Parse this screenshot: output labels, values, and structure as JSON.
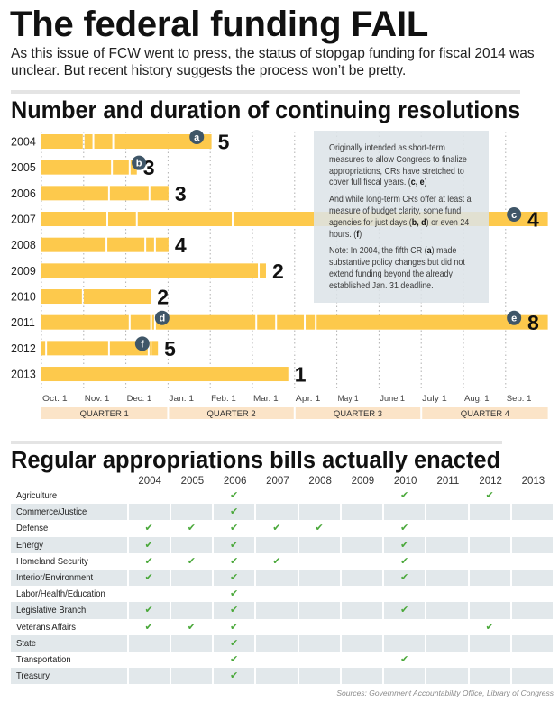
{
  "header": {
    "title": "The federal funding FAIL",
    "subtitle": "As this issue of FCW went to press, the status of stopgap funding for fiscal 2014 was unclear. But recent history suggests the process won’t be pretty."
  },
  "colors": {
    "bar": "#fdc94c",
    "badge": "#3f5668",
    "quarter_band": "#fbe4c8",
    "note_box": "#dde4e9",
    "check": "#4aa83a",
    "shaded_row": "#e2e8eb"
  },
  "chart_data": {
    "type": "bar",
    "orientation": "horizontal timeline (each bar = fiscal year, white breaks = end of each continuing resolution)",
    "title": "Number and duration of continuing resolutions",
    "xlabel": "",
    "ylabel": "",
    "x_unit": "months since Oct. 1 (start of fiscal year)",
    "x_range": [
      0,
      12
    ],
    "grid": "dotted vertical lines at each month",
    "categories": [
      "2004",
      "2005",
      "2006",
      "2007",
      "2008",
      "2009",
      "2010",
      "2011",
      "2012",
      "2013"
    ],
    "x_ticks": [
      "Oct. 1",
      "Nov. 1",
      "Dec. 1",
      "Jan. 1",
      "Feb. 1",
      "Mar. 1",
      "Apr. 1",
      "May 1",
      "June 1",
      "July 1",
      "Aug. 1",
      "Sep. 1"
    ],
    "quarters": [
      "QUARTER 1",
      "QUARTER 2",
      "QUARTER 3",
      "QUARTER 4"
    ],
    "series": [
      {
        "year": "2004",
        "count": "5",
        "cr_end_months": [
          1.0,
          1.23,
          1.7,
          4.03
        ],
        "badges": [
          {
            "letter": "a",
            "at": 3.68
          }
        ]
      },
      {
        "year": "2005",
        "count": "3",
        "cr_end_months": [
          1.67,
          2.09,
          2.26
        ],
        "badges": [
          {
            "letter": "b",
            "at": 2.31
          }
        ]
      },
      {
        "year": "2006",
        "count": "3",
        "cr_end_months": [
          1.6,
          2.56,
          3.01
        ],
        "badges": []
      },
      {
        "year": "2007",
        "count": "4",
        "cr_end_months": [
          1.56,
          2.26,
          4.53,
          12
        ],
        "badges": [
          {
            "letter": "c",
            "at": 11.2
          }
        ]
      },
      {
        "year": "2008",
        "count": "4",
        "cr_end_months": [
          1.54,
          2.46,
          2.69,
          3.01
        ],
        "badges": []
      },
      {
        "year": "2009",
        "count": "2",
        "cr_end_months": [
          5.15,
          5.32
        ],
        "badges": []
      },
      {
        "year": "2010",
        "count": "2",
        "cr_end_months": [
          0.98,
          2.59
        ],
        "badges": []
      },
      {
        "year": "2011",
        "count": "8",
        "cr_end_months": [
          2.09,
          2.6,
          2.69,
          5.09,
          5.56,
          6.24,
          6.5,
          12
        ],
        "badges": [
          {
            "letter": "d",
            "at": 2.86
          },
          {
            "letter": "e",
            "at": 11.2
          }
        ]
      },
      {
        "year": "2012",
        "count": "5",
        "cr_end_months": [
          0.11,
          1.6,
          2.54,
          2.59,
          2.76
        ],
        "badges": [
          {
            "letter": "f",
            "at": 2.39
          }
        ]
      },
      {
        "year": "2013",
        "count": "1",
        "cr_end_months": [
          5.85
        ],
        "badges": []
      }
    ]
  },
  "note": {
    "paragraphs": [
      [
        {
          "t": "Originally intended as short-term measures to allow Congress to finalize appropriations, CRs have stretched to cover full fiscal years. ("
        },
        {
          "t": "c, e",
          "b": true
        },
        {
          "t": ")"
        }
      ],
      [
        {
          "t": "And while long-term CRs offer at least a measure of budget clarity, some fund agencies for just days ("
        },
        {
          "t": "b, d",
          "b": true
        },
        {
          "t": ") or even 24 hours. ("
        },
        {
          "t": "f",
          "b": true
        },
        {
          "t": ")"
        }
      ],
      [
        {
          "t": "Note: In 2004, the fifth CR ("
        },
        {
          "t": "a",
          "b": true
        },
        {
          "t": ") made substantive policy changes but did not extend funding beyond the already established Jan. 31 deadline."
        }
      ]
    ]
  },
  "table": {
    "title": "Regular appropriations bills actually enacted",
    "years": [
      "2004",
      "2005",
      "2006",
      "2007",
      "2008",
      "2009",
      "2010",
      "2011",
      "2012",
      "2013"
    ],
    "check_glyph": "✔",
    "rows": [
      {
        "name": "Agriculture",
        "enacted": [
          "2006",
          "2010",
          "2012"
        ]
      },
      {
        "name": "Commerce/Justice",
        "enacted": [
          "2006"
        ]
      },
      {
        "name": "Defense",
        "enacted": [
          "2004",
          "2005",
          "2006",
          "2007",
          "2008",
          "2010"
        ]
      },
      {
        "name": "Energy",
        "enacted": [
          "2004",
          "2006",
          "2010"
        ]
      },
      {
        "name": "Homeland Security",
        "enacted": [
          "2004",
          "2005",
          "2006",
          "2007",
          "2010"
        ]
      },
      {
        "name": "Interior/Environment",
        "enacted": [
          "2004",
          "2006",
          "2010"
        ]
      },
      {
        "name": "Labor/Health/Education",
        "enacted": [
          "2006"
        ]
      },
      {
        "name": "Legislative Branch",
        "enacted": [
          "2004",
          "2006",
          "2010"
        ]
      },
      {
        "name": "Veterans Affairs",
        "enacted": [
          "2004",
          "2005",
          "2006",
          "2012"
        ]
      },
      {
        "name": "State",
        "enacted": [
          "2006"
        ]
      },
      {
        "name": "Transportation",
        "enacted": [
          "2006",
          "2010"
        ]
      },
      {
        "name": "Treasury",
        "enacted": [
          "2006"
        ]
      }
    ]
  },
  "footer": {
    "source": "Sources: Government Accountability Office, Library of Congress"
  }
}
